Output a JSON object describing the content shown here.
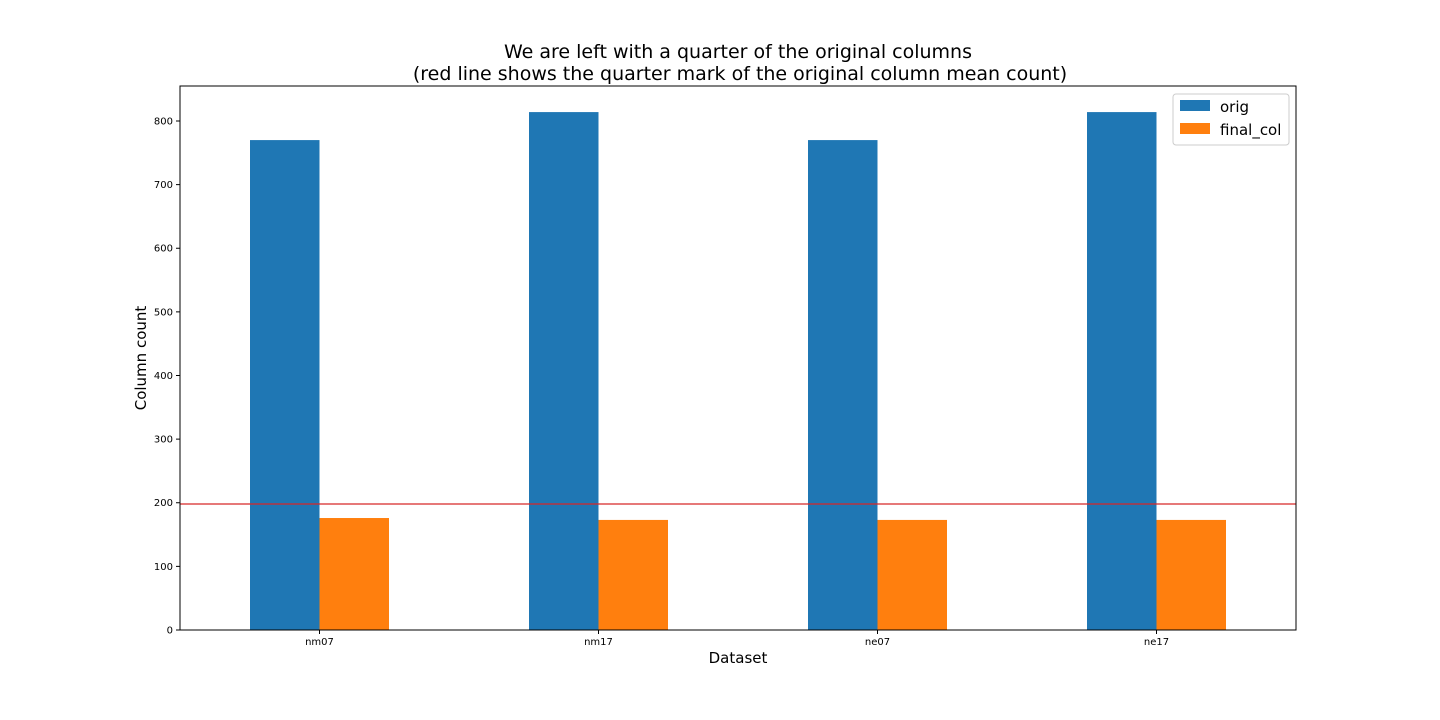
{
  "chart_data": {
    "type": "bar",
    "title": "We are left with a quarter of the original columns",
    "subtitle": "(red line shows the quarter mark of the original column mean count)",
    "xlabel": "Dataset",
    "ylabel": "Column count",
    "categories": [
      "nm07",
      "nm17",
      "ne07",
      "ne17"
    ],
    "series": [
      {
        "name": "orig",
        "color": "#1f77b4",
        "values": [
          770,
          814,
          770,
          814
        ]
      },
      {
        "name": "final_col",
        "color": "#ff7f0e",
        "values": [
          176,
          173,
          173,
          173
        ]
      }
    ],
    "ylim": [
      0,
      855
    ],
    "yticks": [
      0,
      100,
      200,
      300,
      400,
      500,
      600,
      700,
      800
    ],
    "hline": {
      "value": 198,
      "color": "#d62728"
    },
    "grid": false,
    "legend_position": "top-right"
  }
}
